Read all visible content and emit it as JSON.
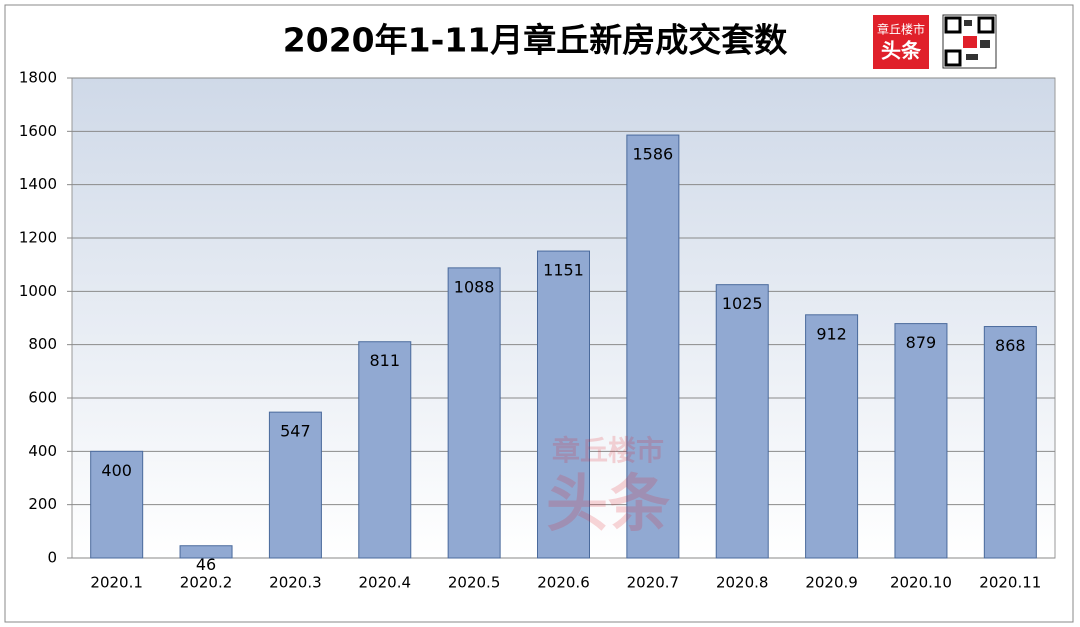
{
  "chart_data": {
    "type": "bar",
    "title": "2020年1-11月章丘新房成交套数",
    "categories": [
      "2020.1",
      "2020.2",
      "2020.3",
      "2020.4",
      "2020.5",
      "2020.6",
      "2020.7",
      "2020.8",
      "2020.9",
      "2020.10",
      "2020.11"
    ],
    "values": [
      400,
      46,
      547,
      811,
      1088,
      1151,
      1586,
      1025,
      912,
      879,
      868
    ],
    "color": "#91a9d2",
    "ylim": [
      0,
      1800
    ],
    "yticks": [
      0,
      200,
      400,
      600,
      800,
      1000,
      1200,
      1400,
      1600,
      1800
    ],
    "grid": true,
    "logo": {
      "top": "章丘楼市",
      "bottom": "头条"
    }
  }
}
